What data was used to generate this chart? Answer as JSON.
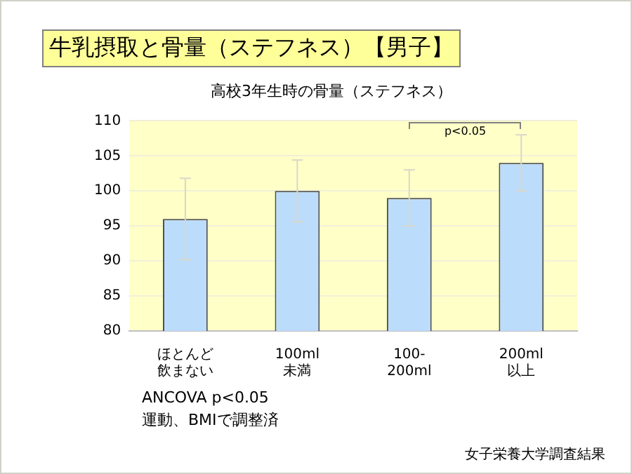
{
  "chart_data": {
    "type": "bar",
    "title": "牛乳摂取と骨量（ステフネス）【男子】",
    "subtitle": "高校3年生時の骨量（ステフネス）",
    "categories": [
      "ほとんど飲まない",
      "100ml未満",
      "100-200ml",
      "200ml以上"
    ],
    "series": [
      {
        "color": "#bcdcfc",
        "values": [
          96,
          100,
          99,
          104
        ],
        "errors": [
          5.8,
          4.4,
          4,
          4
        ]
      }
    ],
    "ylim": [
      80,
      110
    ],
    "yticks": [
      80,
      85,
      90,
      95,
      100,
      105,
      110
    ],
    "grid": "y",
    "legend": false,
    "annotations": [
      "p<0.05",
      "ANCOVA p<0.05",
      "運動、BMIで調整済",
      "女子栄養大学調査結果"
    ]
  }
}
